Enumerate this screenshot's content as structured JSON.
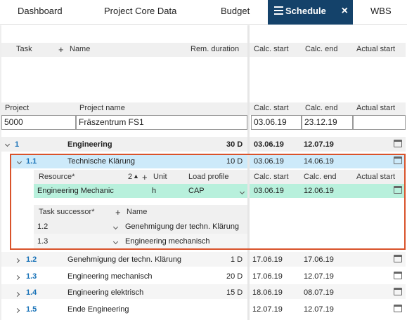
{
  "tabs": [
    {
      "label": "Dashboard"
    },
    {
      "label": "Project Core Data"
    },
    {
      "label": "Budget"
    },
    {
      "label": "Schedule",
      "active": true
    },
    {
      "label": "WBS"
    }
  ],
  "grid_header": {
    "task": "Task",
    "add": "+",
    "name": "Name",
    "rem_duration": "Rem. duration",
    "calc_start": "Calc. start",
    "calc_end": "Calc. end",
    "actual_start": "Actual start"
  },
  "project_header": {
    "project": "Project",
    "project_name": "Project name",
    "calc_start": "Calc. start",
    "calc_end": "Calc. end",
    "actual_start": "Actual start"
  },
  "project": {
    "id": "5000",
    "name": "Fräszentrum FS1",
    "calc_start": "03.06.19",
    "calc_end": "23.12.19",
    "actual_start": ""
  },
  "tasks": [
    {
      "num": "1",
      "name": "Engineering",
      "dur": "30 D",
      "start": "03.06.19",
      "end": "12.07.19"
    },
    {
      "num": "1.1",
      "name": "Technische Klärung",
      "dur": "10 D",
      "start": "03.06.19",
      "end": "14.06.19"
    },
    {
      "num": "1.2",
      "name": "Genehmigung der techn. Klärung",
      "dur": "1 D",
      "start": "17.06.19",
      "end": "17.06.19"
    },
    {
      "num": "1.3",
      "name": "Engineering mechanisch",
      "dur": "20 D",
      "start": "17.06.19",
      "end": "12.07.19"
    },
    {
      "num": "1.4",
      "name": "Engineering elektrisch",
      "dur": "15 D",
      "start": "18.06.19",
      "end": "08.07.19"
    },
    {
      "num": "1.5",
      "name": "Ende Engineering",
      "dur": "",
      "start": "12.07.19",
      "end": "12.07.19"
    }
  ],
  "resource_header": {
    "resource": "Resource*",
    "count": "2",
    "add": "+",
    "unit": "Unit",
    "load_profile": "Load profile",
    "calc_start": "Calc. start",
    "calc_end": "Calc. end",
    "actual_start": "Actual start"
  },
  "resource": {
    "name": "Engineering Mechanic",
    "unit": "h",
    "load_profile": "CAP",
    "calc_start": "03.06.19",
    "calc_end": "12.06.19"
  },
  "successor_header": {
    "label": "Task successor*",
    "add": "+",
    "name": "Name"
  },
  "successors": [
    {
      "num": "1.2",
      "name": "Genehmigung der techn. Klärung"
    },
    {
      "num": "1.3",
      "name": "Engineering mechanisch"
    }
  ],
  "icons": {
    "menu": "hamburger-icon",
    "close": "close-icon",
    "calendar": "calendar-icon",
    "expand": "chevron-icon",
    "sort": "sort-up-icon"
  },
  "colors": {
    "active_tab": "#14426a",
    "selected_row": "#cdeafa",
    "resource_row": "#b8f0dc",
    "selection_border": "#d9532b",
    "link": "#1a73b8"
  }
}
